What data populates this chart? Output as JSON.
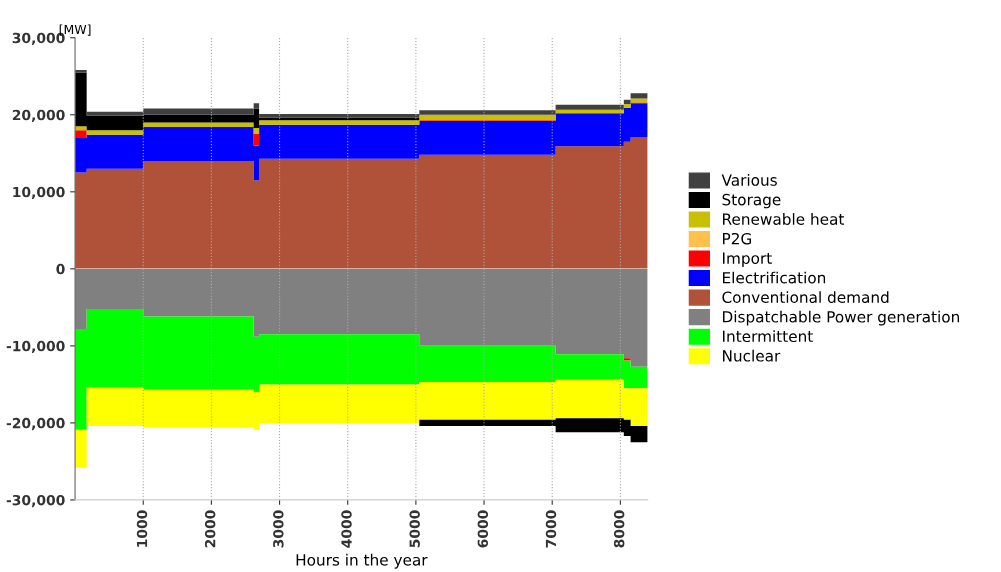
{
  "chart_data": [
    {
      "type": "area",
      "stacked": true,
      "ylabel": "[MW]",
      "x": [
        0,
        170,
        170,
        1000,
        1000,
        2620,
        2620,
        2700,
        2700,
        5050,
        5050,
        7050,
        7050,
        8050,
        8050,
        8150,
        8150,
        8400
      ],
      "xlim": [
        0,
        8400
      ],
      "xticks": [
        1000,
        2000,
        3000,
        4000,
        5000,
        6000,
        7000,
        8000
      ],
      "ylim": [
        0,
        30000
      ],
      "yticks": [
        0,
        {
          "value": 10000,
          "label": "10,000"
        },
        {
          "value": 20000,
          "label": "20,000"
        },
        {
          "value": 30000,
          "label": "30,000"
        }
      ],
      "grid": "x",
      "legend": "right",
      "tick_labels": "y",
      "series": [
        {
          "name": "Conventional demand",
          "color": "#b0523a",
          "values": [
            12500,
            12500,
            13000,
            13000,
            14000,
            14000,
            11500,
            11500,
            14300,
            14300,
            14800,
            14800,
            15900,
            15900,
            16500,
            16500,
            17100,
            17100
          ]
        },
        {
          "name": "Electrification",
          "color": "#0000ff",
          "values": [
            4500,
            4500,
            4400,
            4400,
            4400,
            4400,
            4500,
            4500,
            4400,
            4400,
            4400,
            4400,
            4300,
            4300,
            4400,
            4400,
            4400,
            4400
          ]
        },
        {
          "name": "Import",
          "color": "#ff0000",
          "values": [
            1000,
            1000,
            0,
            0,
            0,
            0,
            1500,
            1500,
            0,
            0,
            100,
            100,
            0,
            0,
            0,
            0,
            100,
            100
          ]
        },
        {
          "name": "P2G",
          "color": "#ffc04c",
          "values": [
            null,
            null,
            null,
            null,
            null,
            null,
            null,
            null,
            null,
            null,
            null,
            null,
            null,
            null,
            null,
            null,
            null,
            null
          ]
        },
        {
          "name": "Renewable heat",
          "color": "#c8c000",
          "values": [
            500,
            500,
            600,
            600,
            600,
            600,
            800,
            800,
            600,
            600,
            700,
            700,
            450,
            450,
            500,
            500,
            500,
            500
          ]
        },
        {
          "name": "Storage",
          "color": "#000000",
          "values": [
            7000,
            7000,
            1900,
            1900,
            1000,
            1000,
            2500,
            2500,
            300,
            300,
            0,
            0,
            0,
            0,
            0,
            0,
            0,
            0
          ]
        },
        {
          "name": "Various",
          "color": "#404040",
          "values": [
            300,
            300,
            500,
            500,
            800,
            800,
            700,
            700,
            500,
            500,
            600,
            600,
            650,
            650,
            550,
            550,
            700,
            700
          ]
        }
      ]
    },
    {
      "type": "area",
      "stacked": true,
      "xlabel": "Hours in the year",
      "x": [
        0,
        170,
        170,
        1000,
        1000,
        2620,
        2620,
        2700,
        2700,
        5050,
        5050,
        7050,
        7050,
        8050,
        8050,
        8150,
        8150,
        8400
      ],
      "xlim": [
        0,
        8400
      ],
      "xticks": [
        1000,
        2000,
        3000,
        4000,
        5000,
        6000,
        7000,
        8000
      ],
      "ylim": [
        -30000,
        0
      ],
      "yticks": [
        {
          "value": -30000,
          "label": "-30,000"
        },
        {
          "value": -20000,
          "label": "-20,000"
        },
        {
          "value": -10000,
          "label": "-10,000"
        }
      ],
      "grid": "x",
      "legend": "right",
      "series": [
        {
          "name": "Dispatchable Power generation",
          "color": "#808080",
          "values": [
            -7800,
            -7800,
            -5200,
            -5200,
            -6200,
            -6200,
            -8800,
            -8800,
            -8500,
            -8500,
            -10000,
            -10000,
            -11100,
            -11100,
            -11600,
            -11600,
            -12700,
            -12700
          ]
        },
        {
          "color": "#ff0000",
          "values": [
            0,
            0,
            0,
            0,
            0,
            0,
            0,
            0,
            0,
            0,
            0,
            0,
            0,
            0,
            -300,
            -300,
            0,
            0
          ]
        },
        {
          "name": "Intermittent",
          "color": "#00ff00",
          "values": [
            -13100,
            -13100,
            -10200,
            -10200,
            -9500,
            -9500,
            -7200,
            -7200,
            -6500,
            -6500,
            -4700,
            -4700,
            -3300,
            -3300,
            -3600,
            -3600,
            -2800,
            -2800
          ]
        },
        {
          "name": "Nuclear",
          "color": "#ffff00",
          "values": [
            -4900,
            -4900,
            -5000,
            -5000,
            -4900,
            -4900,
            -4900,
            -4900,
            -5000,
            -5000,
            -4900,
            -4900,
            -5000,
            -5000,
            -4100,
            -4100,
            -4900,
            -4900
          ]
        },
        {
          "color": "#000000",
          "values": [
            0,
            0,
            0,
            0,
            0,
            0,
            0,
            0,
            0,
            0,
            -800,
            -800,
            -1800,
            -1800,
            -2100,
            -2100,
            -2100,
            -2100
          ]
        }
      ]
    }
  ]
}
